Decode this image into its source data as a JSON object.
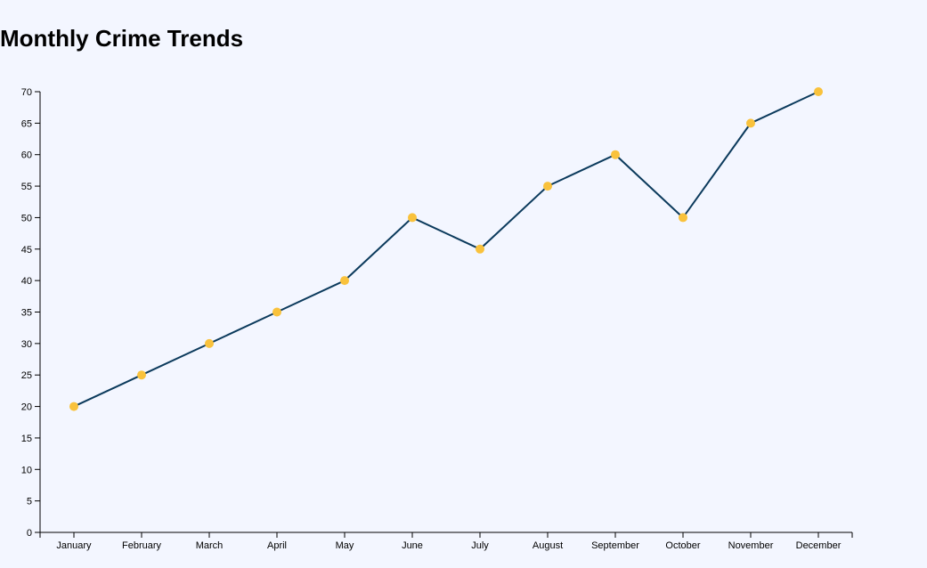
{
  "title": "Monthly Crime Trends",
  "chart_data": {
    "type": "line",
    "title": "Monthly Crime Trends",
    "xlabel": "",
    "ylabel": "",
    "categories": [
      "January",
      "February",
      "March",
      "April",
      "May",
      "June",
      "July",
      "August",
      "September",
      "October",
      "November",
      "December"
    ],
    "values": [
      20,
      25,
      30,
      35,
      40,
      50,
      45,
      55,
      60,
      50,
      65,
      70
    ],
    "ylim": [
      0,
      70
    ],
    "yticks": [
      0,
      5,
      10,
      15,
      20,
      25,
      30,
      35,
      40,
      45,
      50,
      55,
      60,
      65,
      70
    ],
    "grid": false,
    "colors": {
      "line": "#0b3a5c",
      "point": "#f9c23c",
      "axis": "#000000",
      "background": "#f3f6ff"
    }
  }
}
